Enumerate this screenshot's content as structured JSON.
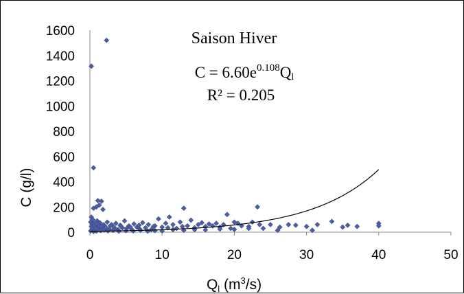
{
  "chart_data": {
    "type": "scatter",
    "title": "Saison Hiver",
    "equation": {
      "base": "C = 6.60e",
      "exponent": "0.108",
      "tail": "Q",
      "tail_sub": "l"
    },
    "r_squared": "R² = 0.205",
    "xlabel": {
      "base": "Q",
      "sub": "l",
      "unit_pre": " (m",
      "unit_sup": "3",
      "unit_post": "/s)"
    },
    "ylabel": "C (g/l)",
    "xlim": [
      0,
      50
    ],
    "ylim": [
      0,
      1600
    ],
    "x_ticks": [
      0,
      10,
      20,
      30,
      40,
      50
    ],
    "y_ticks": [
      0,
      200,
      400,
      600,
      800,
      1000,
      1200,
      1400,
      1600
    ],
    "grid": false,
    "marker_color": "#4e5ea3",
    "marker_edge": "#2b3a7a",
    "trendline": {
      "type": "exponential",
      "a": 6.6,
      "b": 0.108,
      "x_range": [
        0,
        40
      ],
      "color": "#000000"
    },
    "series": [
      {
        "points": [
          [
            0.2,
            1315
          ],
          [
            2.3,
            1520
          ],
          [
            0.5,
            510
          ],
          [
            1.1,
            250
          ],
          [
            1.6,
            245
          ],
          [
            1.3,
            215
          ],
          [
            0.5,
            190
          ],
          [
            0.9,
            200
          ],
          [
            1.8,
            180
          ],
          [
            13.0,
            190
          ],
          [
            23.2,
            200
          ],
          [
            0.2,
            120
          ],
          [
            0.4,
            100
          ],
          [
            0.1,
            80
          ],
          [
            0.3,
            60
          ],
          [
            0.6,
            70
          ],
          [
            0.8,
            50
          ],
          [
            1.0,
            90
          ],
          [
            1.2,
            40
          ],
          [
            1.4,
            75
          ],
          [
            1.7,
            30
          ],
          [
            1.9,
            60
          ],
          [
            2.1,
            45
          ],
          [
            2.4,
            80
          ],
          [
            2.7,
            25
          ],
          [
            3.0,
            60
          ],
          [
            3.3,
            40
          ],
          [
            3.6,
            70
          ],
          [
            3.9,
            20
          ],
          [
            4.2,
            55
          ],
          [
            4.5,
            35
          ],
          [
            4.8,
            90
          ],
          [
            5.1,
            30
          ],
          [
            5.4,
            50
          ],
          [
            5.8,
            20
          ],
          [
            6.1,
            65
          ],
          [
            6.5,
            40
          ],
          [
            6.9,
            25
          ],
          [
            7.3,
            75
          ],
          [
            7.7,
            35
          ],
          [
            8.1,
            60
          ],
          [
            8.5,
            20
          ],
          [
            9.0,
            50
          ],
          [
            9.5,
            105
          ],
          [
            10.0,
            40
          ],
          [
            10.5,
            70
          ],
          [
            11.0,
            120
          ],
          [
            11.5,
            60
          ],
          [
            12.0,
            30
          ],
          [
            12.5,
            80
          ],
          [
            13.5,
            50
          ],
          [
            14.0,
            95
          ],
          [
            14.5,
            35
          ],
          [
            15.0,
            60
          ],
          [
            15.5,
            75
          ],
          [
            16.0,
            45
          ],
          [
            16.5,
            65
          ],
          [
            17.0,
            50
          ],
          [
            17.5,
            70
          ],
          [
            18.0,
            40
          ],
          [
            18.5,
            60
          ],
          [
            19.0,
            140
          ],
          [
            19.5,
            30
          ],
          [
            20.0,
            80
          ],
          [
            20.5,
            70
          ],
          [
            21.0,
            50
          ],
          [
            22.0,
            45
          ],
          [
            22.5,
            80
          ],
          [
            23.5,
            60
          ],
          [
            24.0,
            30
          ],
          [
            25.0,
            60
          ],
          [
            26.0,
            15
          ],
          [
            26.3,
            40
          ],
          [
            27.5,
            60
          ],
          [
            28.5,
            55
          ],
          [
            30.0,
            45
          ],
          [
            30.8,
            15
          ],
          [
            31.5,
            60
          ],
          [
            33.5,
            85
          ],
          [
            35.0,
            40
          ],
          [
            35.7,
            55
          ],
          [
            37.0,
            45
          ],
          [
            40.0,
            70
          ],
          [
            40.0,
            50
          ],
          [
            0.1,
            10
          ],
          [
            0.3,
            20
          ],
          [
            0.5,
            5
          ],
          [
            0.7,
            15
          ],
          [
            0.9,
            8
          ],
          [
            1.1,
            25
          ],
          [
            1.5,
            12
          ],
          [
            2.0,
            18
          ],
          [
            2.5,
            10
          ],
          [
            3.2,
            15
          ],
          [
            4.0,
            8
          ],
          [
            5.0,
            12
          ],
          [
            6.0,
            10
          ],
          [
            7.0,
            15
          ],
          [
            8.0,
            8
          ],
          [
            9.0,
            12
          ],
          [
            10.0,
            10
          ],
          [
            11.5,
            20
          ],
          [
            13.0,
            15
          ],
          [
            14.5,
            20
          ],
          [
            16.0,
            18
          ],
          [
            18.0,
            25
          ],
          [
            20.0,
            22
          ],
          [
            22.0,
            30
          ],
          [
            0.2,
            45
          ],
          [
            0.4,
            35
          ],
          [
            0.6,
            55
          ],
          [
            0.8,
            30
          ],
          [
            1.0,
            65
          ],
          [
            1.3,
            50
          ],
          [
            1.6,
            45
          ],
          [
            2.2,
            35
          ],
          [
            2.8,
            50
          ],
          [
            3.5,
            30
          ],
          [
            4.3,
            45
          ],
          [
            5.6,
            40
          ],
          [
            6.8,
            55
          ],
          [
            8.8,
            45
          ],
          [
            10.8,
            35
          ],
          [
            12.8,
            45
          ]
        ]
      }
    ]
  }
}
